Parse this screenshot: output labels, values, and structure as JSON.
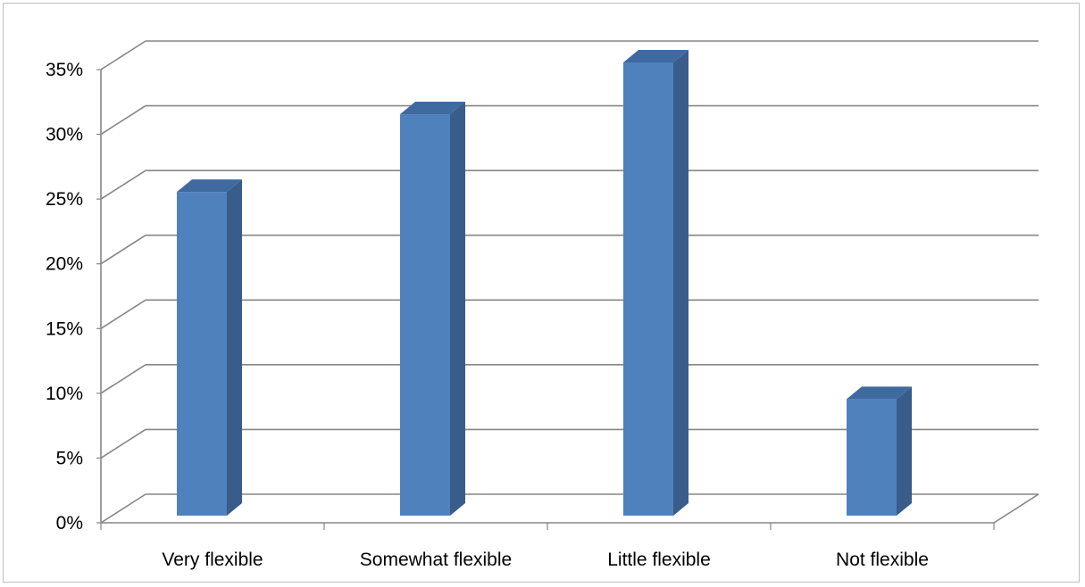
{
  "chart_data": {
    "type": "bar",
    "style": "3d-column",
    "categories": [
      "Very flexible",
      "Somewhat flexible",
      "Little flexible",
      "Not flexible"
    ],
    "values": [
      0.25,
      0.31,
      0.35,
      0.09
    ],
    "ylim": [
      0,
      0.35
    ],
    "yticks": [
      0,
      0.05,
      0.1,
      0.15,
      0.2,
      0.25,
      0.3,
      0.35
    ],
    "ytick_labels": [
      "0%",
      "5%",
      "10%",
      "15%",
      "20%",
      "25%",
      "30%",
      "35%"
    ],
    "grid": true,
    "legend": "none"
  },
  "colors": {
    "bar_front": "#4f81bd",
    "bar_side": "#385d8a",
    "bar_top": "#3e6aa0",
    "grid": "#868686",
    "axis": "#868686"
  }
}
